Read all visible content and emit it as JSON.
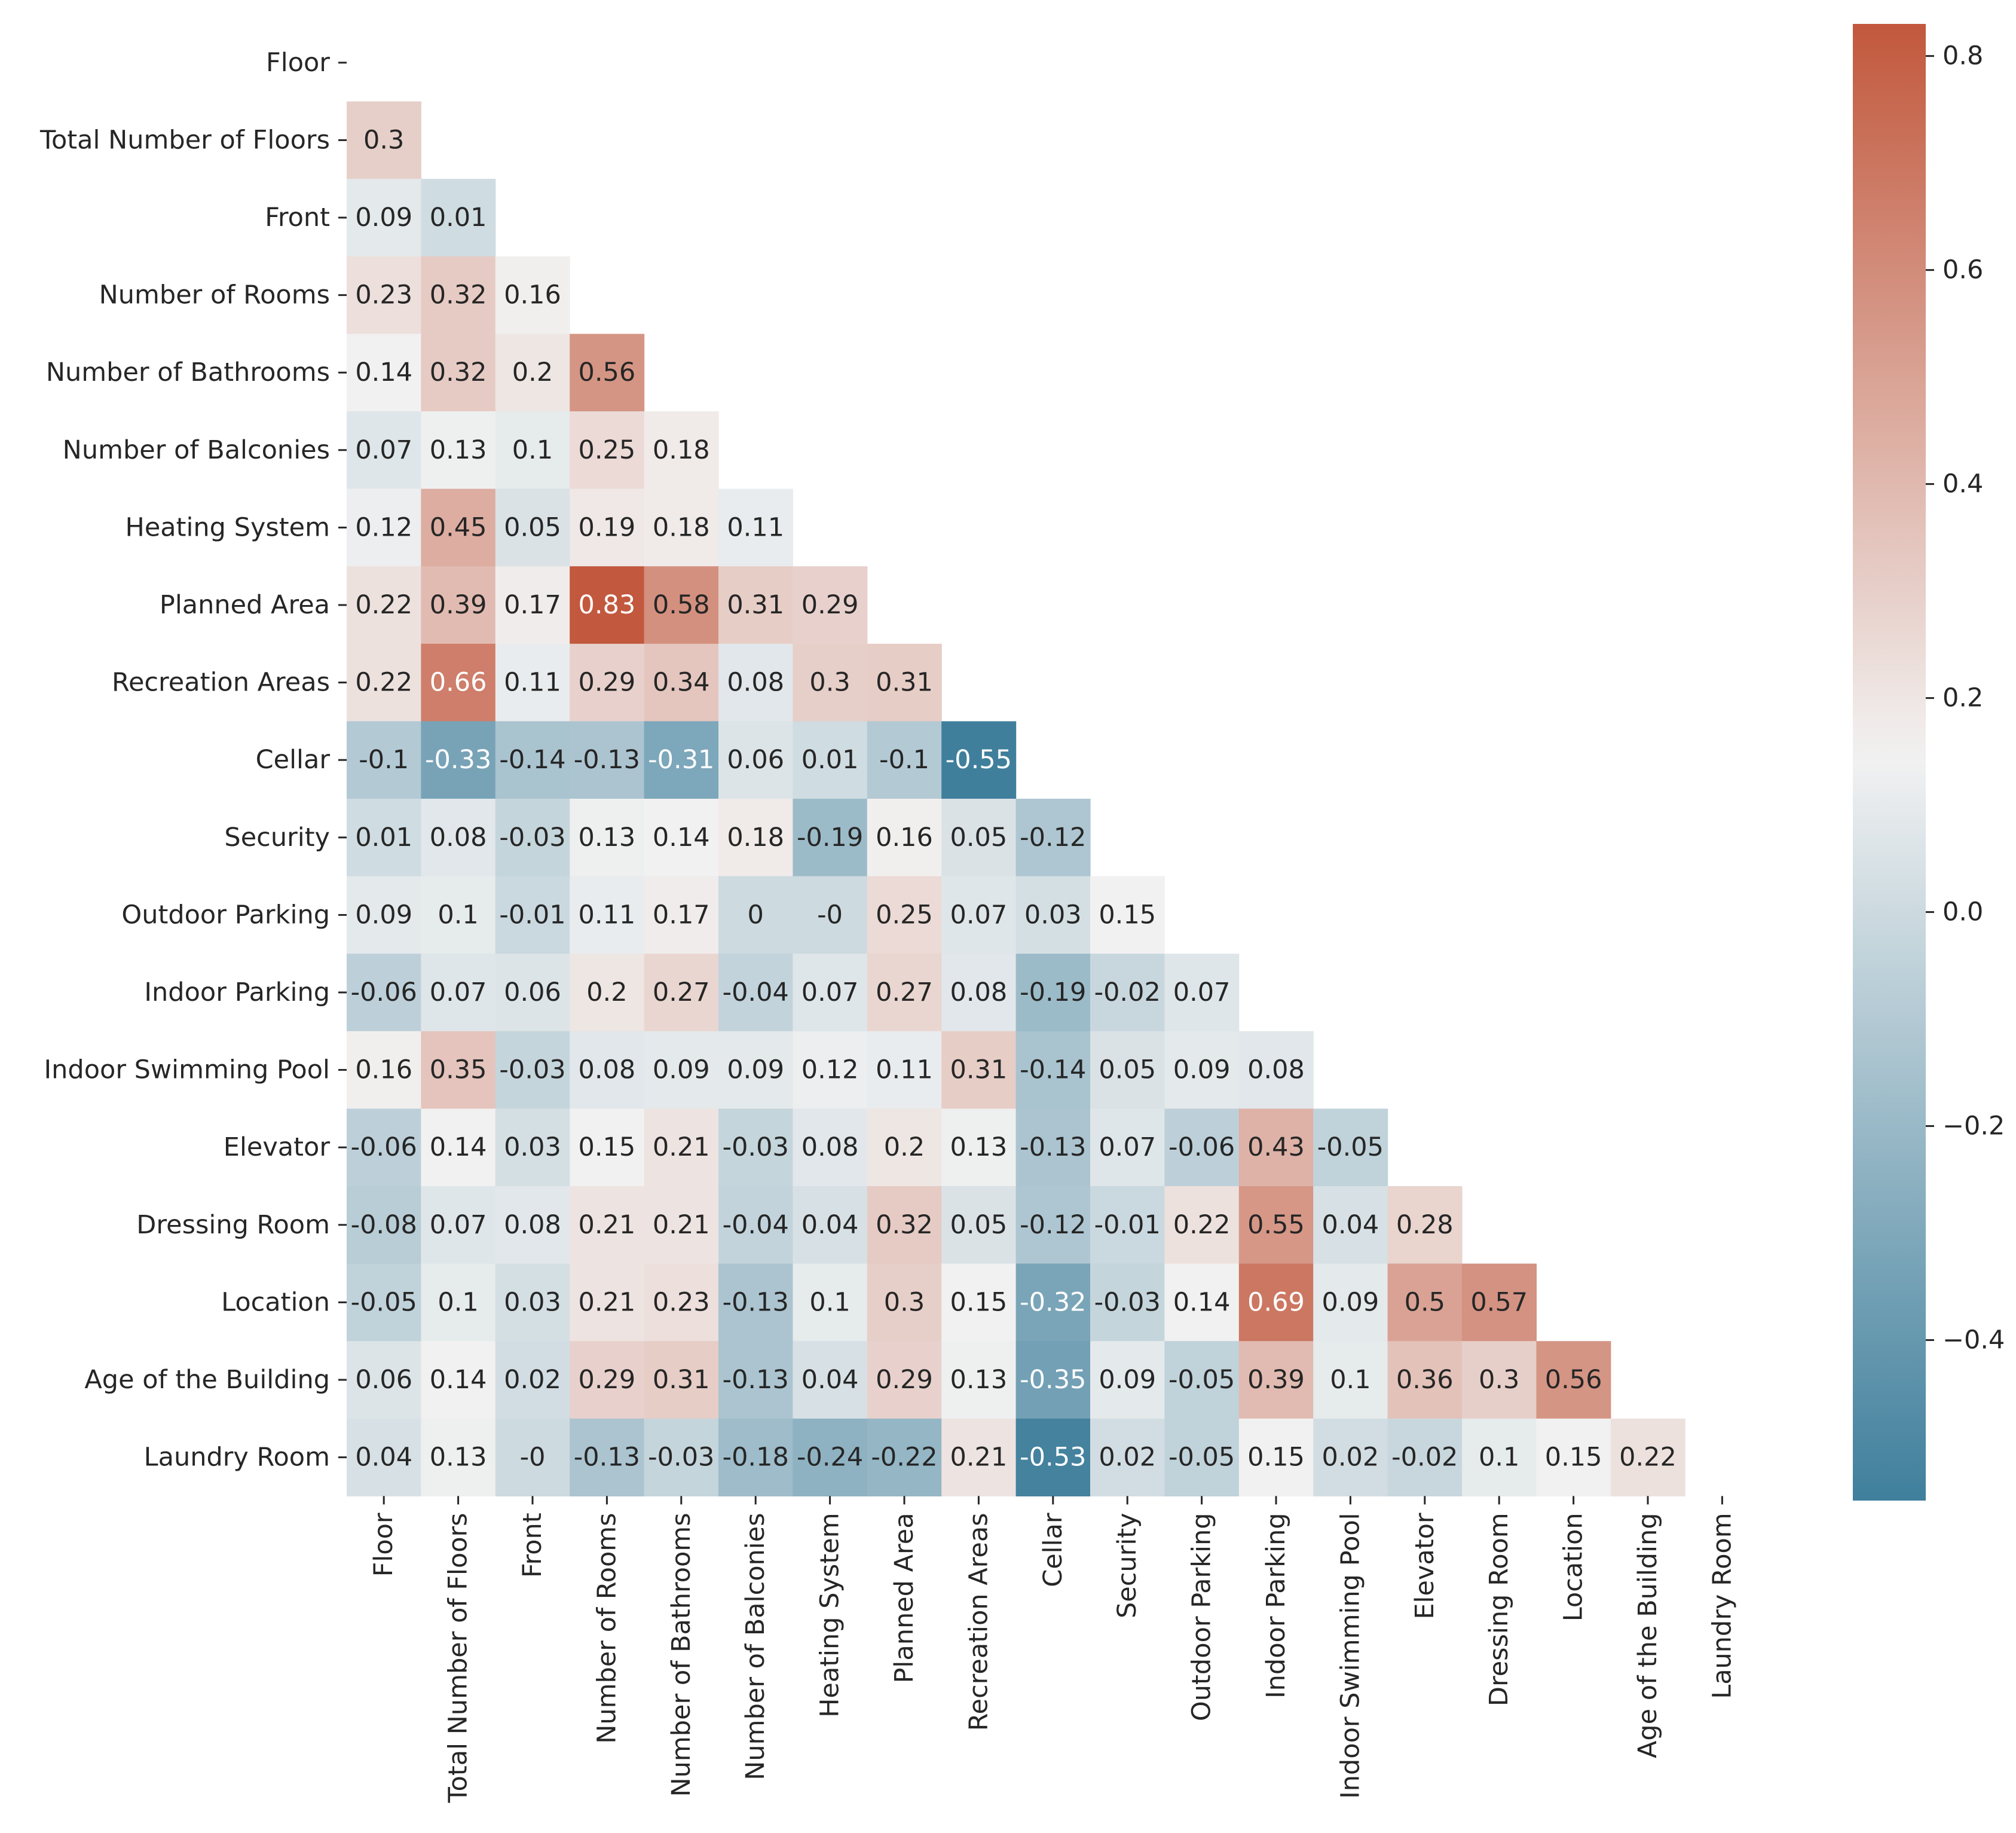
{
  "chart_data": {
    "type": "heatmap",
    "title": "",
    "xlabel": "",
    "ylabel": "",
    "variables": [
      "Floor",
      "Total Number of Floors",
      "Front",
      "Number of Rooms",
      "Number of Bathrooms",
      "Number of Balconies",
      "Heating System",
      "Planned Area",
      "Recreation Areas",
      "Cellar",
      "Security",
      "Outdoor Parking",
      "Indoor Parking",
      "Indoor Swimming Pool",
      "Elevator",
      "Dressing Room",
      "Location",
      "Age of the Building",
      "Laundry Room"
    ],
    "mask": "upper-triangle-including-diagonal",
    "values": [
      [],
      [
        0.3
      ],
      [
        0.09,
        0.01
      ],
      [
        0.23,
        0.32,
        0.16
      ],
      [
        0.14,
        0.32,
        0.2,
        0.56
      ],
      [
        0.07,
        0.13,
        0.1,
        0.25,
        0.18
      ],
      [
        0.12,
        0.45,
        0.05,
        0.19,
        0.18,
        0.11
      ],
      [
        0.22,
        0.39,
        0.17,
        0.83,
        0.58,
        0.31,
        0.29
      ],
      [
        0.22,
        0.66,
        0.11,
        0.29,
        0.34,
        0.08,
        0.3,
        0.31
      ],
      [
        -0.1,
        -0.33,
        -0.14,
        -0.13,
        -0.31,
        0.06,
        0.01,
        -0.1,
        -0.55
      ],
      [
        0.01,
        0.08,
        -0.03,
        0.13,
        0.14,
        0.18,
        -0.19,
        0.16,
        0.05,
        -0.12
      ],
      [
        0.09,
        0.1,
        -0.01,
        0.11,
        0.17,
        0,
        "-0",
        0.25,
        0.07,
        0.03,
        0.15
      ],
      [
        -0.06,
        0.07,
        0.06,
        0.2,
        0.27,
        -0.04,
        0.07,
        0.27,
        0.08,
        -0.19,
        -0.02,
        0.07
      ],
      [
        0.16,
        0.35,
        -0.03,
        0.08,
        0.09,
        0.09,
        0.12,
        0.11,
        0.31,
        -0.14,
        0.05,
        0.09,
        0.08
      ],
      [
        -0.06,
        0.14,
        0.03,
        0.15,
        0.21,
        -0.03,
        0.08,
        0.2,
        0.13,
        -0.13,
        0.07,
        -0.06,
        0.43,
        -0.05
      ],
      [
        -0.08,
        0.07,
        0.08,
        0.21,
        0.21,
        -0.04,
        0.04,
        0.32,
        0.05,
        -0.12,
        -0.01,
        0.22,
        0.55,
        0.04,
        0.28
      ],
      [
        -0.05,
        0.1,
        0.03,
        0.21,
        0.23,
        -0.13,
        0.1,
        0.3,
        0.15,
        -0.32,
        -0.03,
        0.14,
        0.69,
        0.09,
        0.5,
        0.57
      ],
      [
        0.06,
        0.14,
        0.02,
        0.29,
        0.31,
        -0.13,
        0.04,
        0.29,
        0.13,
        -0.35,
        0.09,
        -0.05,
        0.39,
        0.1,
        0.36,
        0.3,
        0.56
      ],
      [
        0.04,
        0.13,
        "-0",
        -0.13,
        -0.03,
        -0.18,
        -0.24,
        -0.22,
        0.21,
        -0.53,
        0.02,
        -0.05,
        0.15,
        0.02,
        -0.02,
        0.1,
        0.15,
        0.22
      ]
    ],
    "colorbar": {
      "range": [
        -0.55,
        0.83
      ],
      "ticks": [
        -0.4,
        -0.2,
        0.0,
        0.2,
        0.4,
        0.6,
        0.8
      ],
      "tick_labels": [
        "−0.4",
        "−0.2",
        "0.0",
        "0.2",
        "0.4",
        "0.6",
        "0.8"
      ],
      "colormap": "diverging blue-white-red",
      "color_low": "#3f7f9c",
      "color_mid": "#f2f2f2",
      "color_high": "#c2583d",
      "center": 0.145
    }
  }
}
